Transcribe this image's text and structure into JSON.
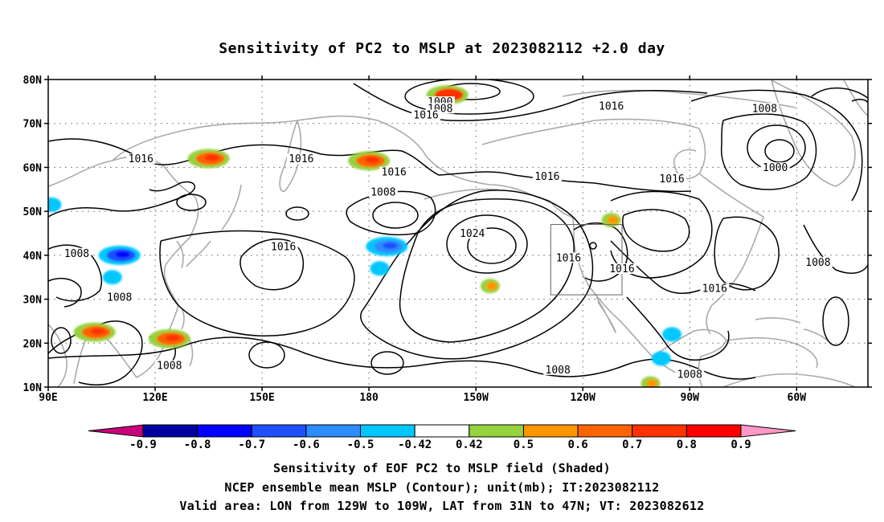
{
  "title": "Sensitivity of PC2 to MSLP at 2023082112 +2.0 day",
  "map": {
    "lat_ticks": [
      "80N",
      "70N",
      "60N",
      "50N",
      "40N",
      "30N",
      "20N",
      "10N"
    ],
    "lon_ticks": [
      "90E",
      "120E",
      "150E",
      "180",
      "150W",
      "120W",
      "90W",
      "60W"
    ],
    "lon_range": [
      90,
      320
    ],
    "lat_range": [
      10,
      80
    ],
    "grid": "dotted",
    "coastline_color": "#aaaaaa",
    "contour_color": "#000000",
    "contour_labels": [
      {
        "text": "1000",
        "lon": 200,
        "lat": 74.5
      },
      {
        "text": "1008",
        "lon": 200,
        "lat": 73
      },
      {
        "text": "1016",
        "lon": 196,
        "lat": 71.5
      },
      {
        "text": "1016",
        "lon": 116,
        "lat": 61.5
      },
      {
        "text": "1016",
        "lon": 161,
        "lat": 61.5
      },
      {
        "text": "1016",
        "lon": 187,
        "lat": 58.5
      },
      {
        "text": "1008",
        "lon": 184,
        "lat": 54
      },
      {
        "text": "1024",
        "lon": 209,
        "lat": 44.5
      },
      {
        "text": "1016",
        "lon": 156,
        "lat": 41.5
      },
      {
        "text": "1016",
        "lon": 236,
        "lat": 39
      },
      {
        "text": "1016",
        "lon": 230,
        "lat": 57.5
      },
      {
        "text": "1016",
        "lon": 265,
        "lat": 57
      },
      {
        "text": "1016",
        "lon": 251,
        "lat": 36.5
      },
      {
        "text": "1016",
        "lon": 277,
        "lat": 32
      },
      {
        "text": "1016",
        "lon": 248,
        "lat": 73.5
      },
      {
        "text": "1008",
        "lon": 291,
        "lat": 73
      },
      {
        "text": "1000",
        "lon": 294,
        "lat": 59.5
      },
      {
        "text": "1008",
        "lon": 306,
        "lat": 38
      },
      {
        "text": "1008",
        "lon": 98,
        "lat": 40
      },
      {
        "text": "1008",
        "lon": 110,
        "lat": 30
      },
      {
        "text": "1008",
        "lon": 124,
        "lat": 14.5
      },
      {
        "text": "1008",
        "lon": 233,
        "lat": 13.5
      },
      {
        "text": "1008",
        "lon": 270,
        "lat": 12.5
      }
    ],
    "valid_box": {
      "lon_west": 231,
      "lon_east": 251,
      "lat_south": 31,
      "lat_north": 47
    },
    "shaded_patches": [
      {
        "lon": 202,
        "lat": 76.5,
        "value": 0.7
      },
      {
        "lon": 180,
        "lat": 61.5,
        "value": 0.6
      },
      {
        "lon": 135,
        "lat": 62,
        "value": 0.6
      },
      {
        "lon": 185,
        "lat": 42,
        "value": -0.6
      },
      {
        "lon": 183,
        "lat": 37,
        "value": -0.5
      },
      {
        "lon": 110,
        "lat": 40,
        "value": -0.7
      },
      {
        "lon": 108,
        "lat": 35,
        "value": -0.5
      },
      {
        "lon": 91,
        "lat": 51.5,
        "value": -0.5
      },
      {
        "lon": 124,
        "lat": 21,
        "value": 0.6
      },
      {
        "lon": 103,
        "lat": 22.5,
        "value": 0.6
      },
      {
        "lon": 265,
        "lat": 22,
        "value": -0.5
      },
      {
        "lon": 262,
        "lat": 16.5,
        "value": -0.5
      },
      {
        "lon": 214,
        "lat": 33,
        "value": 0.5
      },
      {
        "lon": 248,
        "lat": 48,
        "value": 0.5
      },
      {
        "lon": 259,
        "lat": 10.8,
        "value": 0.5
      }
    ]
  },
  "colorbar": {
    "labels": [
      "-0.9",
      "-0.8",
      "-0.7",
      "-0.6",
      "-0.5",
      "-0.42",
      "0.42",
      "0.5",
      "0.6",
      "0.7",
      "0.8",
      "0.9"
    ],
    "colors": [
      "#c8007a",
      "#0000a0",
      "#0000ff",
      "#1e50ff",
      "#2d8cff",
      "#00c8ff",
      "#ffffff",
      "#96d23c",
      "#ff9600",
      "#ff6400",
      "#ff3200",
      "#ff0000",
      "#ff9ac8"
    ]
  },
  "footer": {
    "line1": "Sensitivity of EOF PC2 to MSLP field (Shaded)",
    "line2": "NCEP ensemble mean MSLP (Contour); unit(mb); IT:2023082112",
    "line3": "Valid area: LON from 129W to 109W, LAT from 31N to 47N; VT: 2023082612"
  }
}
